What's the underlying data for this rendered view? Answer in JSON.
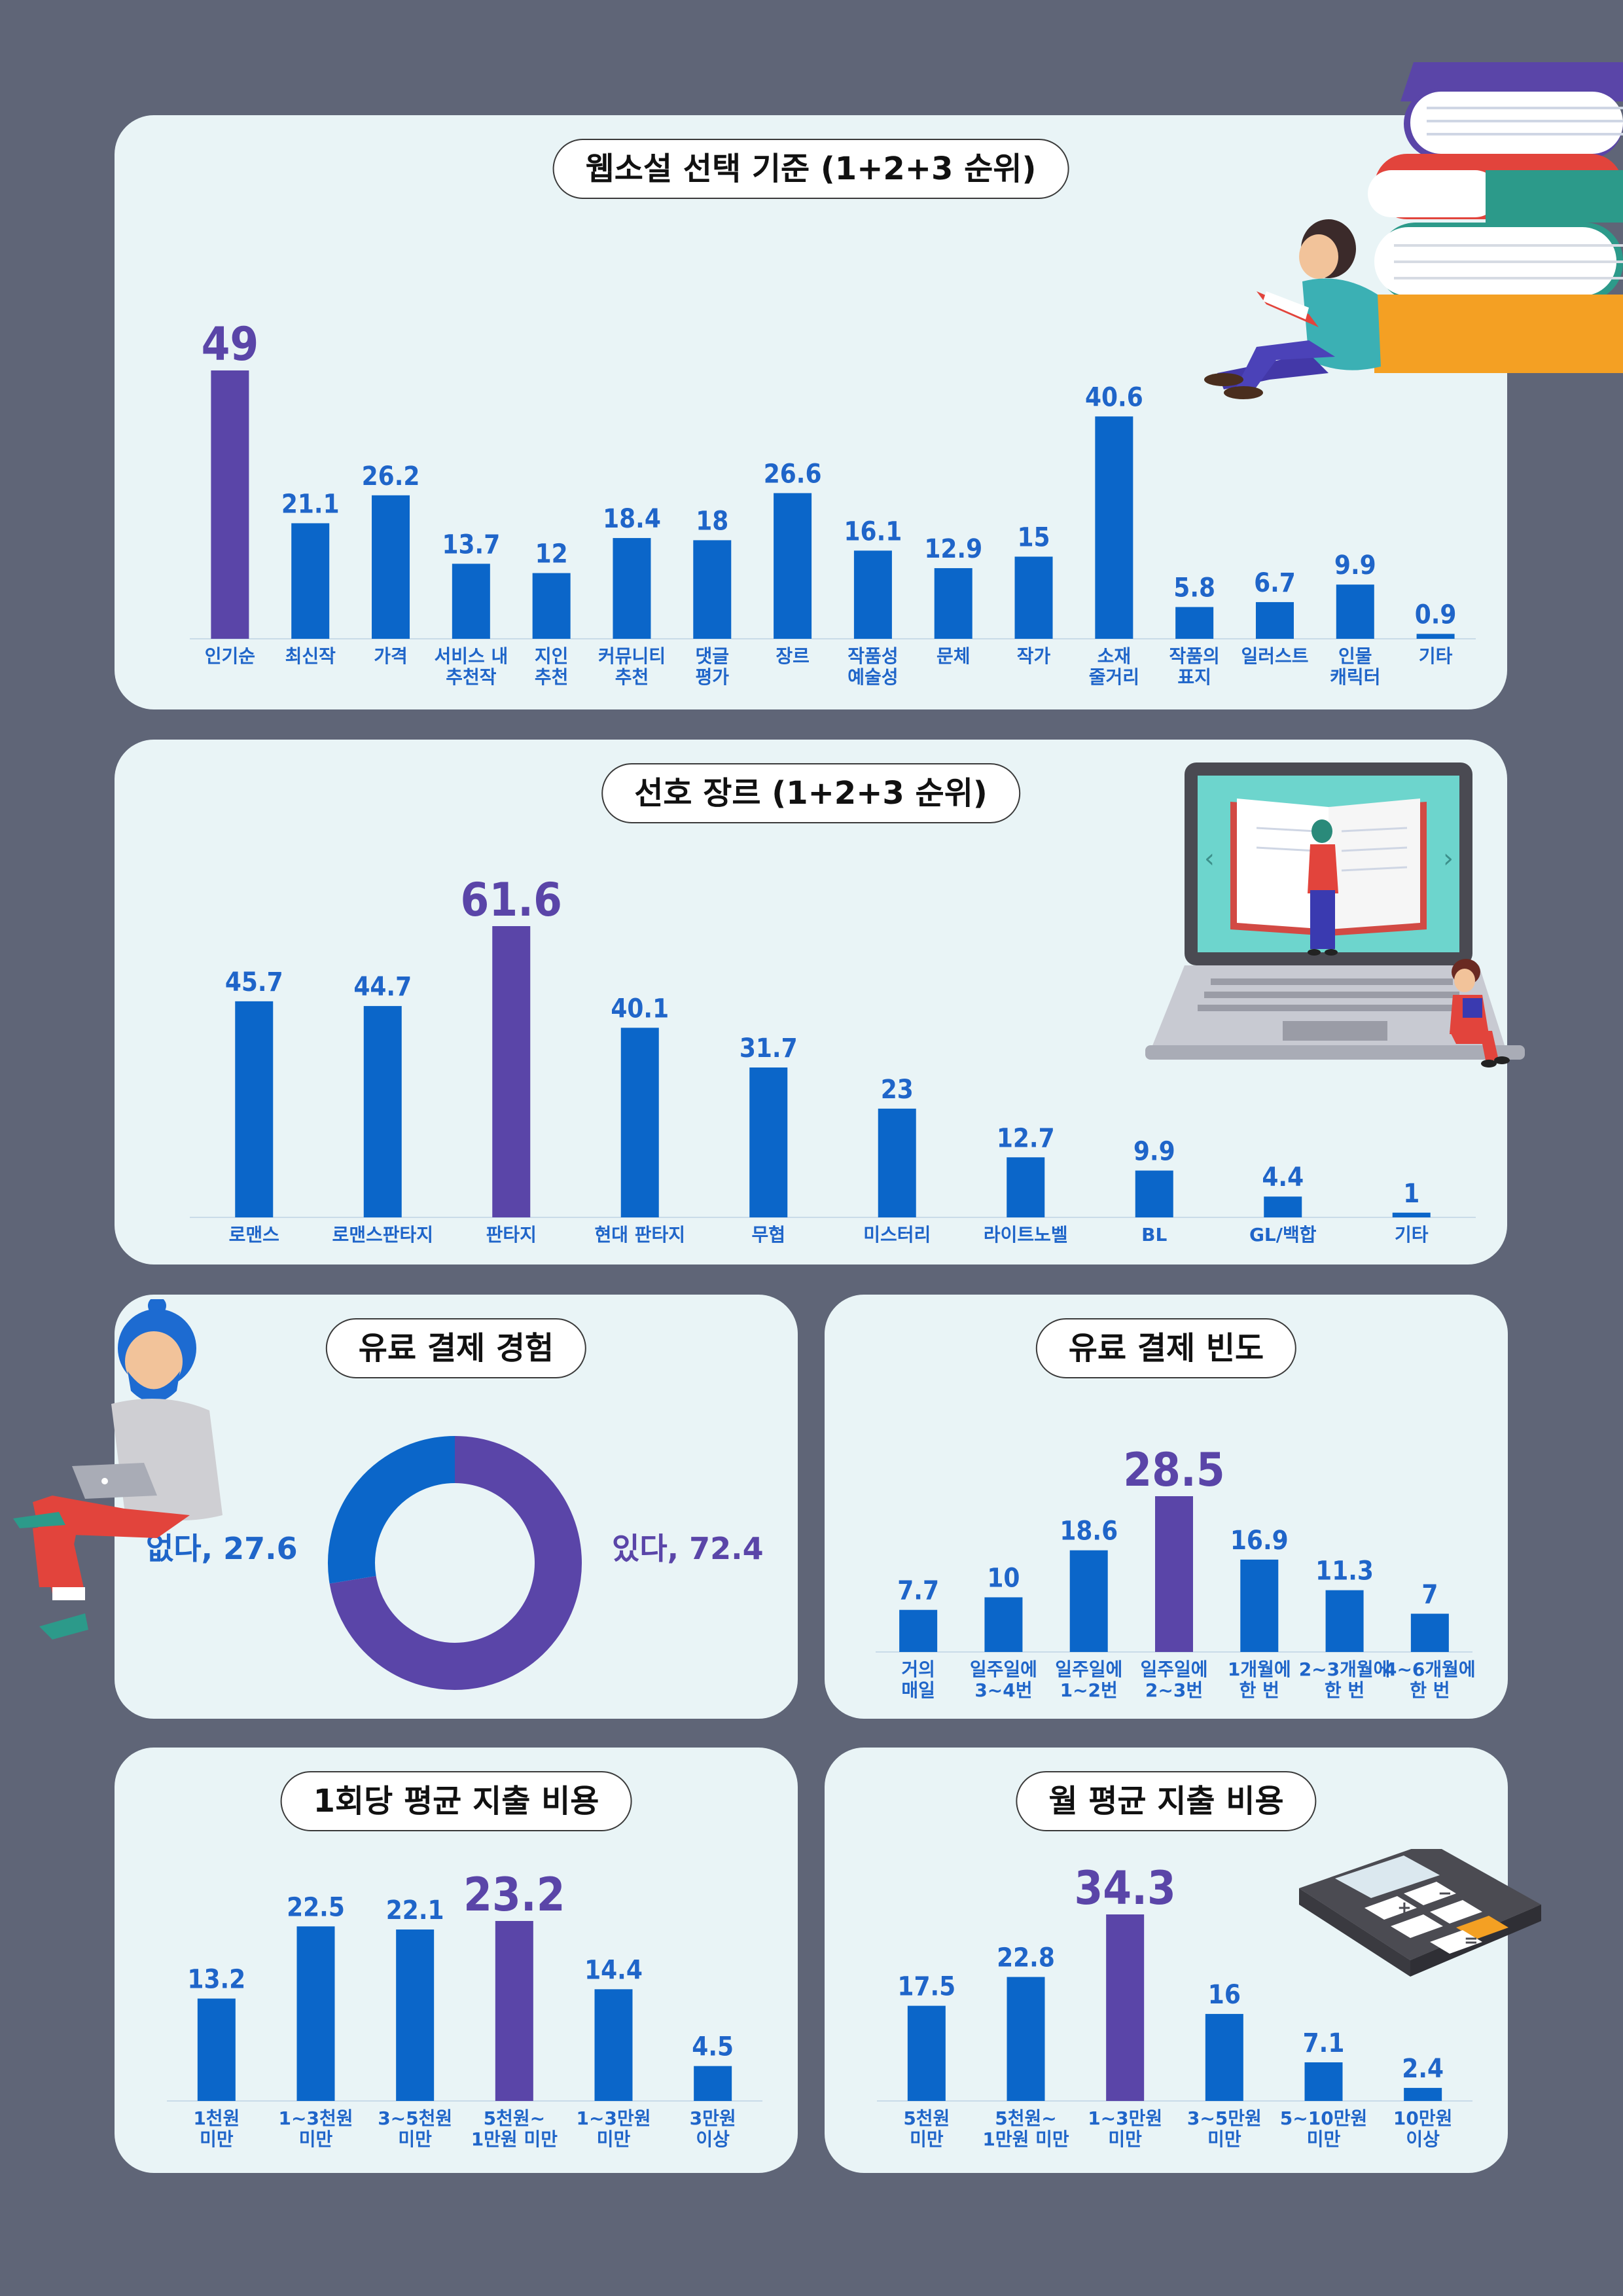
{
  "colors": {
    "bar": "#0b66c9",
    "highlight": "#5a45a8",
    "card": "#e9f4f6",
    "background": "#5f6577"
  },
  "chart_data": [
    {
      "id": "selection",
      "type": "bar",
      "title": "웹소설 선택 기준 (1+2+3 순위)",
      "categories": [
        "인기순",
        "최신작",
        "가격",
        "서비스 내\n추천작",
        "지인\n추천",
        "커뮤니티\n추천",
        "댓글\n평가",
        "장르",
        "작품성\n예술성",
        "문체",
        "작가",
        "소재\n줄거리",
        "작품의\n표지",
        "일러스트",
        "인물\n캐릭터",
        "기타"
      ],
      "values": [
        49,
        21.1,
        26.2,
        13.7,
        12,
        18.4,
        18,
        26.6,
        16.1,
        12.9,
        15,
        40.6,
        5.8,
        6.7,
        9.9,
        0.9
      ],
      "value_labels": [
        "49",
        "21.1",
        "26.2",
        "13.7",
        "12",
        "18.4",
        "18",
        "26.6",
        "16.1",
        "12.9",
        "15",
        "40.6",
        "5.8",
        "6.7",
        "9.9",
        "0.9"
      ],
      "highlight_index": 0,
      "ylim": [
        0,
        49
      ]
    },
    {
      "id": "genre",
      "type": "bar",
      "title": "선호 장르 (1+2+3 순위)",
      "categories": [
        "로맨스",
        "로맨스판타지",
        "판타지",
        "현대 판타지",
        "무협",
        "미스터리",
        "라이트노벨",
        "BL",
        "GL/백합",
        "기타"
      ],
      "values": [
        45.7,
        44.7,
        61.6,
        40.1,
        31.7,
        23,
        12.7,
        9.9,
        4.4,
        1
      ],
      "value_labels": [
        "45.7",
        "44.7",
        "61.6",
        "40.1",
        "31.7",
        "23",
        "12.7",
        "9.9",
        "4.4",
        "1"
      ],
      "highlight_index": 2,
      "ylim": [
        0,
        61.6
      ]
    },
    {
      "id": "paid",
      "type": "pie",
      "title": "유료 결제 경험",
      "labels": [
        "있다",
        "없다"
      ],
      "values": [
        72.4,
        27.6
      ],
      "label_texts": [
        "있다, 72.4",
        "없다, 27.6"
      ]
    },
    {
      "id": "frequency",
      "type": "bar",
      "title": "유료 결제 빈도",
      "categories": [
        "거의\n매일",
        "일주일에\n3~4번",
        "일주일에\n1~2번",
        "일주일에\n2~3번",
        "1개월에\n한 번",
        "2~3개월에\n한 번",
        "4~6개월에\n한 번"
      ],
      "values": [
        7.7,
        10,
        18.6,
        28.5,
        16.9,
        11.3,
        7
      ],
      "value_labels": [
        "7.7",
        "10",
        "18.6",
        "28.5",
        "16.9",
        "11.3",
        "7"
      ],
      "highlight_index": 3,
      "ylim": [
        0,
        28.5
      ]
    },
    {
      "id": "per_use",
      "type": "bar",
      "title": "1회당 평균 지출 비용",
      "categories": [
        "1천원\n미만",
        "1~3천원\n미만",
        "3~5천원\n미만",
        "5천원~\n1만원 미만",
        "1~3만원\n미만",
        "3만원\n이상"
      ],
      "values": [
        13.2,
        22.5,
        22.1,
        23.2,
        14.4,
        4.5
      ],
      "value_labels": [
        "13.2",
        "22.5",
        "22.1",
        "23.2",
        "14.4",
        "4.5"
      ],
      "highlight_index": 3,
      "ylim": [
        0,
        23.2
      ]
    },
    {
      "id": "monthly",
      "type": "bar",
      "title": "월 평균 지출 비용",
      "categories": [
        "5천원\n미만",
        "5천원~\n1만원 미만",
        "1~3만원\n미만",
        "3~5만원\n미만",
        "5~10만원\n미만",
        "10만원\n이상"
      ],
      "values": [
        17.5,
        22.8,
        34.3,
        16,
        7.1,
        2.4
      ],
      "value_labels": [
        "17.5",
        "22.8",
        "34.3",
        "16",
        "7.1",
        "2.4"
      ],
      "highlight_index": 2,
      "ylim": [
        0,
        34.3
      ]
    }
  ],
  "icons": [
    "books-icon",
    "reading-person-icon",
    "laptop-book-icon",
    "laptop-person-icon",
    "calculator-icon"
  ]
}
